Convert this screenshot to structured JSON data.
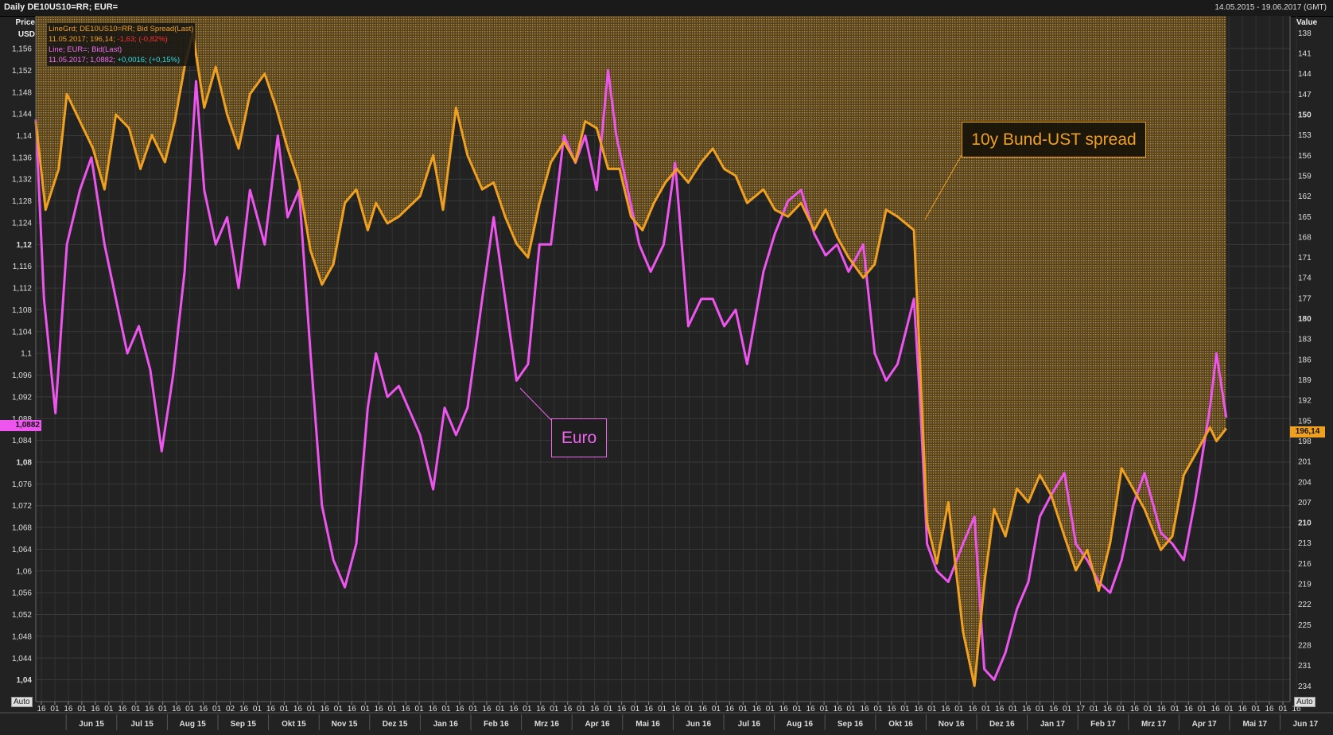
{
  "header": {
    "title": "Daily DE10US10=RR; EUR=",
    "date_range": "14.05.2015 - 19.06.2017 (GMT)"
  },
  "axes": {
    "left_title_1": "Price",
    "left_title_2": "USD",
    "right_title": "Value",
    "auto_label": "Auto"
  },
  "legend": {
    "spread_series": "LineGrd; DE10US10=RR; Bid Spread(Last)",
    "spread_values_prefix": "11.05.2017; 196,14;",
    "spread_change": "-1,63; (-0,82%)",
    "eur_series": "Line; EUR=; Bid(Last)",
    "eur_values_prefix": "11.05.2017; 1,0882;",
    "eur_change": "+0,0016; (+0,15%)"
  },
  "annotations": {
    "spread": "10y Bund-UST spread",
    "euro": "Euro"
  },
  "last_values": {
    "eur": "1,0882",
    "spread": "196,14"
  },
  "colors": {
    "background": "#222222",
    "spread": "#f0a020",
    "eur": "#ee55ee",
    "fill": "#8a6a28"
  },
  "chart_data": {
    "type": "line",
    "x_start": "2015-05-14",
    "x_end": "2017-06-19",
    "y_left": {
      "label": "Price USD",
      "range": [
        1.036,
        1.162
      ],
      "ticks": [
        "1,04",
        "1,044",
        "1,048",
        "1,052",
        "1,056",
        "1,06",
        "1,064",
        "1,068",
        "1,072",
        "1,076",
        "1,08",
        "1,084",
        "1,088",
        "1,092",
        "1,096",
        "1,1",
        "1,104",
        "1,108",
        "1,112",
        "1,116",
        "1,12",
        "1,124",
        "1,128",
        "1,132",
        "1,136",
        "1,14",
        "1,144",
        "1,148",
        "1,152",
        "1,156"
      ],
      "tick_values": [
        1.04,
        1.044,
        1.048,
        1.052,
        1.056,
        1.06,
        1.064,
        1.068,
        1.072,
        1.076,
        1.08,
        1.084,
        1.088,
        1.092,
        1.096,
        1.1,
        1.104,
        1.108,
        1.112,
        1.116,
        1.12,
        1.124,
        1.128,
        1.132,
        1.136,
        1.14,
        1.144,
        1.148,
        1.152,
        1.156
      ],
      "bold_ticks": [
        "1,04",
        "1,08",
        "1,12"
      ]
    },
    "y_right": {
      "label": "Value",
      "inverted": true,
      "range": [
        135.5,
        236.3
      ],
      "ticks": [
        "138",
        "141",
        "144",
        "147",
        "150",
        "153",
        "156",
        "159",
        "162",
        "165",
        "168",
        "171",
        "174",
        "177",
        "180",
        "183",
        "186",
        "189",
        "192",
        "195",
        "198",
        "201",
        "204",
        "207",
        "210",
        "213",
        "216",
        "219",
        "222",
        "225",
        "228",
        "231",
        "234"
      ],
      "tick_values": [
        138,
        141,
        144,
        147,
        150,
        153,
        156,
        159,
        162,
        165,
        168,
        171,
        174,
        177,
        180,
        183,
        186,
        189,
        192,
        195,
        198,
        201,
        204,
        207,
        210,
        213,
        216,
        219,
        222,
        225,
        228,
        231,
        234
      ],
      "bold_ticks": [
        "150",
        "180",
        "210"
      ]
    },
    "x_ticks": {
      "days": [
        "16",
        "01",
        "16",
        "01",
        "16",
        "01",
        "16",
        "01",
        "16",
        "01",
        "16",
        "01",
        "16",
        "01",
        "02",
        "16",
        "01",
        "16",
        "01",
        "16",
        "01",
        "16",
        "01",
        "16",
        "01",
        "16",
        "01",
        "16",
        "01",
        "16",
        "01",
        "16",
        "01",
        "16",
        "01",
        "16",
        "01",
        "16",
        "01",
        "16",
        "01",
        "16",
        "01",
        "16",
        "01",
        "16",
        "01",
        "16",
        "01",
        "16",
        "01",
        "16",
        "01",
        "16",
        "01",
        "16",
        "01",
        "16",
        "01",
        "16",
        "01",
        "16",
        "01",
        "16",
        "01",
        "16",
        "01",
        "16",
        "01",
        "16",
        "01",
        "16",
        "01",
        "16",
        "01",
        "16",
        "01",
        "17",
        "01",
        "16",
        "01",
        "16",
        "01",
        "16",
        "01",
        "16",
        "01",
        "16",
        "01",
        "16",
        "01",
        "16",
        "01",
        "16"
      ],
      "months": [
        "Jun 15",
        "Jul 15",
        "Aug 15",
        "Sep 15",
        "Okt 15",
        "Nov 15",
        "Dez 15",
        "Jan 16",
        "Feb 16",
        "Mrz 16",
        "Apr 16",
        "Mai 16",
        "Jun 16",
        "Jul 16",
        "Aug 16",
        "Sep 16",
        "Okt 16",
        "Nov 16",
        "Dez 16",
        "Jan 17",
        "Feb 17",
        "Mrz 17",
        "Apr 17",
        "Mai 17",
        "Jun 17"
      ]
    },
    "series": [
      {
        "name": "DE10US10=RR Bid Spread",
        "axis": "right",
        "x": [
          "2015-05-14",
          "2015-05-20",
          "2015-05-28",
          "2015-06-02",
          "2015-06-10",
          "2015-06-18",
          "2015-06-25",
          "2015-07-02",
          "2015-07-10",
          "2015-07-17",
          "2015-07-24",
          "2015-08-01",
          "2015-08-07",
          "2015-08-13",
          "2015-08-18",
          "2015-08-25",
          "2015-09-01",
          "2015-09-08",
          "2015-09-15",
          "2015-09-22",
          "2015-10-01",
          "2015-10-08",
          "2015-10-15",
          "2015-10-22",
          "2015-10-29",
          "2015-11-05",
          "2015-11-12",
          "2015-11-19",
          "2015-11-26",
          "2015-12-03",
          "2015-12-08",
          "2015-12-15",
          "2015-12-22",
          "2016-01-04",
          "2016-01-12",
          "2016-01-18",
          "2016-01-26",
          "2016-02-02",
          "2016-02-11",
          "2016-02-18",
          "2016-02-25",
          "2016-03-03",
          "2016-03-10",
          "2016-03-17",
          "2016-03-24",
          "2016-04-01",
          "2016-04-08",
          "2016-04-14",
          "2016-04-21",
          "2016-04-28",
          "2016-05-05",
          "2016-05-12",
          "2016-05-19",
          "2016-05-26",
          "2016-06-02",
          "2016-06-09",
          "2016-06-16",
          "2016-06-24",
          "2016-07-01",
          "2016-07-08",
          "2016-07-15",
          "2016-07-22",
          "2016-08-01",
          "2016-08-08",
          "2016-08-16",
          "2016-08-24",
          "2016-09-01",
          "2016-09-08",
          "2016-09-15",
          "2016-09-22",
          "2016-10-01",
          "2016-10-08",
          "2016-10-15",
          "2016-10-22",
          "2016-11-01",
          "2016-11-05",
          "2016-11-09",
          "2016-11-15",
          "2016-11-22",
          "2016-12-01",
          "2016-12-08",
          "2016-12-14",
          "2016-12-20",
          "2016-12-27",
          "2017-01-03",
          "2017-01-10",
          "2017-01-17",
          "2017-01-24",
          "2017-02-01",
          "2017-02-08",
          "2017-02-15",
          "2017-02-22",
          "2017-03-01",
          "2017-03-08",
          "2017-03-15",
          "2017-03-22",
          "2017-04-01",
          "2017-04-08",
          "2017-04-15",
          "2017-04-22",
          "2017-05-01",
          "2017-05-05",
          "2017-05-11"
        ],
        "values": [
          151,
          164,
          158,
          147,
          151,
          155,
          161,
          150,
          152,
          158,
          153,
          157,
          151,
          143,
          138,
          149,
          143,
          150,
          155,
          147,
          144,
          149,
          155,
          160,
          170,
          175,
          172,
          163,
          161,
          167,
          163,
          166,
          165,
          162,
          156,
          164,
          149,
          156,
          161,
          160,
          165,
          169,
          171,
          163,
          157,
          154,
          157,
          151,
          152,
          158,
          158,
          165,
          167,
          163,
          160,
          158,
          160,
          157,
          155,
          158,
          159,
          163,
          161,
          164,
          165,
          163,
          167,
          164,
          168,
          171,
          174,
          172,
          164,
          165,
          167,
          188,
          210,
          216,
          207,
          226,
          234,
          219,
          208,
          212,
          205,
          207,
          203,
          206,
          212,
          217,
          214,
          220,
          213,
          202,
          205,
          208,
          214,
          212,
          203,
          200,
          196,
          198,
          196.14
        ]
      },
      {
        "name": "EUR= Bid",
        "axis": "left",
        "x": [
          "2015-05-14",
          "2015-05-19",
          "2015-05-26",
          "2015-06-02",
          "2015-06-10",
          "2015-06-17",
          "2015-06-25",
          "2015-07-02",
          "2015-07-09",
          "2015-07-16",
          "2015-07-23",
          "2015-07-30",
          "2015-08-06",
          "2015-08-13",
          "2015-08-20",
          "2015-08-25",
          "2015-09-01",
          "2015-09-08",
          "2015-09-15",
          "2015-09-22",
          "2015-10-01",
          "2015-10-09",
          "2015-10-15",
          "2015-10-22",
          "2015-10-29",
          "2015-11-05",
          "2015-11-12",
          "2015-11-19",
          "2015-11-26",
          "2015-12-03",
          "2015-12-08",
          "2015-12-15",
          "2015-12-22",
          "2016-01-04",
          "2016-01-12",
          "2016-01-19",
          "2016-01-26",
          "2016-02-02",
          "2016-02-11",
          "2016-02-18",
          "2016-02-25",
          "2016-03-03",
          "2016-03-10",
          "2016-03-17",
          "2016-03-24",
          "2016-04-01",
          "2016-04-08",
          "2016-04-14",
          "2016-04-21",
          "2016-04-28",
          "2016-05-03",
          "2016-05-10",
          "2016-05-17",
          "2016-05-24",
          "2016-06-01",
          "2016-06-08",
          "2016-06-16",
          "2016-06-24",
          "2016-07-01",
          "2016-07-08",
          "2016-07-15",
          "2016-07-22",
          "2016-08-01",
          "2016-08-08",
          "2016-08-16",
          "2016-08-24",
          "2016-09-01",
          "2016-09-08",
          "2016-09-15",
          "2016-09-22",
          "2016-10-01",
          "2016-10-08",
          "2016-10-15",
          "2016-10-22",
          "2016-11-01",
          "2016-11-05",
          "2016-11-09",
          "2016-11-15",
          "2016-11-22",
          "2016-12-01",
          "2016-12-08",
          "2016-12-14",
          "2016-12-20",
          "2016-12-27",
          "2017-01-03",
          "2017-01-10",
          "2017-01-17",
          "2017-01-24",
          "2017-02-01",
          "2017-02-08",
          "2017-02-15",
          "2017-02-22",
          "2017-03-01",
          "2017-03-08",
          "2017-03-15",
          "2017-03-22",
          "2017-04-01",
          "2017-04-08",
          "2017-04-15",
          "2017-04-22",
          "2017-05-01",
          "2017-05-05",
          "2017-05-11"
        ],
        "values": [
          1.143,
          1.11,
          1.089,
          1.12,
          1.13,
          1.136,
          1.12,
          1.11,
          1.1,
          1.105,
          1.097,
          1.082,
          1.096,
          1.115,
          1.15,
          1.13,
          1.12,
          1.125,
          1.112,
          1.13,
          1.12,
          1.14,
          1.125,
          1.13,
          1.1,
          1.072,
          1.062,
          1.057,
          1.065,
          1.09,
          1.1,
          1.092,
          1.094,
          1.085,
          1.075,
          1.09,
          1.085,
          1.09,
          1.11,
          1.125,
          1.11,
          1.095,
          1.098,
          1.12,
          1.12,
          1.14,
          1.135,
          1.14,
          1.13,
          1.152,
          1.14,
          1.13,
          1.12,
          1.115,
          1.12,
          1.135,
          1.105,
          1.11,
          1.11,
          1.105,
          1.108,
          1.098,
          1.115,
          1.122,
          1.128,
          1.13,
          1.122,
          1.118,
          1.12,
          1.115,
          1.12,
          1.1,
          1.095,
          1.098,
          1.11,
          1.09,
          1.065,
          1.06,
          1.058,
          1.065,
          1.07,
          1.042,
          1.04,
          1.045,
          1.053,
          1.058,
          1.07,
          1.074,
          1.078,
          1.065,
          1.062,
          1.058,
          1.056,
          1.062,
          1.072,
          1.078,
          1.067,
          1.065,
          1.062,
          1.073,
          1.09,
          1.1,
          1.0882
        ]
      }
    ]
  }
}
